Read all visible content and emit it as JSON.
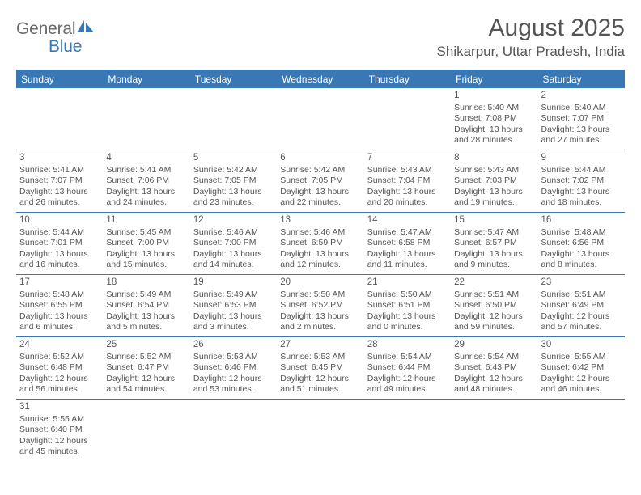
{
  "logo": {
    "general": "General",
    "blue": "Blue"
  },
  "title": "August 2025",
  "location": "Shikarpur, Uttar Pradesh, India",
  "colors": {
    "header_bg": "#3a78b5",
    "text": "#555555",
    "logo_gray": "#6a6a6a",
    "logo_blue": "#3a78b5"
  },
  "day_headers": [
    "Sunday",
    "Monday",
    "Tuesday",
    "Wednesday",
    "Thursday",
    "Friday",
    "Saturday"
  ],
  "weeks": [
    [
      null,
      null,
      null,
      null,
      null,
      {
        "n": "1",
        "sunrise": "Sunrise: 5:40 AM",
        "sunset": "Sunset: 7:08 PM",
        "daylight": "Daylight: 13 hours and 28 minutes."
      },
      {
        "n": "2",
        "sunrise": "Sunrise: 5:40 AM",
        "sunset": "Sunset: 7:07 PM",
        "daylight": "Daylight: 13 hours and 27 minutes."
      }
    ],
    [
      {
        "n": "3",
        "sunrise": "Sunrise: 5:41 AM",
        "sunset": "Sunset: 7:07 PM",
        "daylight": "Daylight: 13 hours and 26 minutes."
      },
      {
        "n": "4",
        "sunrise": "Sunrise: 5:41 AM",
        "sunset": "Sunset: 7:06 PM",
        "daylight": "Daylight: 13 hours and 24 minutes."
      },
      {
        "n": "5",
        "sunrise": "Sunrise: 5:42 AM",
        "sunset": "Sunset: 7:05 PM",
        "daylight": "Daylight: 13 hours and 23 minutes."
      },
      {
        "n": "6",
        "sunrise": "Sunrise: 5:42 AM",
        "sunset": "Sunset: 7:05 PM",
        "daylight": "Daylight: 13 hours and 22 minutes."
      },
      {
        "n": "7",
        "sunrise": "Sunrise: 5:43 AM",
        "sunset": "Sunset: 7:04 PM",
        "daylight": "Daylight: 13 hours and 20 minutes."
      },
      {
        "n": "8",
        "sunrise": "Sunrise: 5:43 AM",
        "sunset": "Sunset: 7:03 PM",
        "daylight": "Daylight: 13 hours and 19 minutes."
      },
      {
        "n": "9",
        "sunrise": "Sunrise: 5:44 AM",
        "sunset": "Sunset: 7:02 PM",
        "daylight": "Daylight: 13 hours and 18 minutes."
      }
    ],
    [
      {
        "n": "10",
        "sunrise": "Sunrise: 5:44 AM",
        "sunset": "Sunset: 7:01 PM",
        "daylight": "Daylight: 13 hours and 16 minutes."
      },
      {
        "n": "11",
        "sunrise": "Sunrise: 5:45 AM",
        "sunset": "Sunset: 7:00 PM",
        "daylight": "Daylight: 13 hours and 15 minutes."
      },
      {
        "n": "12",
        "sunrise": "Sunrise: 5:46 AM",
        "sunset": "Sunset: 7:00 PM",
        "daylight": "Daylight: 13 hours and 14 minutes."
      },
      {
        "n": "13",
        "sunrise": "Sunrise: 5:46 AM",
        "sunset": "Sunset: 6:59 PM",
        "daylight": "Daylight: 13 hours and 12 minutes."
      },
      {
        "n": "14",
        "sunrise": "Sunrise: 5:47 AM",
        "sunset": "Sunset: 6:58 PM",
        "daylight": "Daylight: 13 hours and 11 minutes."
      },
      {
        "n": "15",
        "sunrise": "Sunrise: 5:47 AM",
        "sunset": "Sunset: 6:57 PM",
        "daylight": "Daylight: 13 hours and 9 minutes."
      },
      {
        "n": "16",
        "sunrise": "Sunrise: 5:48 AM",
        "sunset": "Sunset: 6:56 PM",
        "daylight": "Daylight: 13 hours and 8 minutes."
      }
    ],
    [
      {
        "n": "17",
        "sunrise": "Sunrise: 5:48 AM",
        "sunset": "Sunset: 6:55 PM",
        "daylight": "Daylight: 13 hours and 6 minutes."
      },
      {
        "n": "18",
        "sunrise": "Sunrise: 5:49 AM",
        "sunset": "Sunset: 6:54 PM",
        "daylight": "Daylight: 13 hours and 5 minutes."
      },
      {
        "n": "19",
        "sunrise": "Sunrise: 5:49 AM",
        "sunset": "Sunset: 6:53 PM",
        "daylight": "Daylight: 13 hours and 3 minutes."
      },
      {
        "n": "20",
        "sunrise": "Sunrise: 5:50 AM",
        "sunset": "Sunset: 6:52 PM",
        "daylight": "Daylight: 13 hours and 2 minutes."
      },
      {
        "n": "21",
        "sunrise": "Sunrise: 5:50 AM",
        "sunset": "Sunset: 6:51 PM",
        "daylight": "Daylight: 13 hours and 0 minutes."
      },
      {
        "n": "22",
        "sunrise": "Sunrise: 5:51 AM",
        "sunset": "Sunset: 6:50 PM",
        "daylight": "Daylight: 12 hours and 59 minutes."
      },
      {
        "n": "23",
        "sunrise": "Sunrise: 5:51 AM",
        "sunset": "Sunset: 6:49 PM",
        "daylight": "Daylight: 12 hours and 57 minutes."
      }
    ],
    [
      {
        "n": "24",
        "sunrise": "Sunrise: 5:52 AM",
        "sunset": "Sunset: 6:48 PM",
        "daylight": "Daylight: 12 hours and 56 minutes."
      },
      {
        "n": "25",
        "sunrise": "Sunrise: 5:52 AM",
        "sunset": "Sunset: 6:47 PM",
        "daylight": "Daylight: 12 hours and 54 minutes."
      },
      {
        "n": "26",
        "sunrise": "Sunrise: 5:53 AM",
        "sunset": "Sunset: 6:46 PM",
        "daylight": "Daylight: 12 hours and 53 minutes."
      },
      {
        "n": "27",
        "sunrise": "Sunrise: 5:53 AM",
        "sunset": "Sunset: 6:45 PM",
        "daylight": "Daylight: 12 hours and 51 minutes."
      },
      {
        "n": "28",
        "sunrise": "Sunrise: 5:54 AM",
        "sunset": "Sunset: 6:44 PM",
        "daylight": "Daylight: 12 hours and 49 minutes."
      },
      {
        "n": "29",
        "sunrise": "Sunrise: 5:54 AM",
        "sunset": "Sunset: 6:43 PM",
        "daylight": "Daylight: 12 hours and 48 minutes."
      },
      {
        "n": "30",
        "sunrise": "Sunrise: 5:55 AM",
        "sunset": "Sunset: 6:42 PM",
        "daylight": "Daylight: 12 hours and 46 minutes."
      }
    ],
    [
      {
        "n": "31",
        "sunrise": "Sunrise: 5:55 AM",
        "sunset": "Sunset: 6:40 PM",
        "daylight": "Daylight: 12 hours and 45 minutes."
      },
      null,
      null,
      null,
      null,
      null,
      null
    ]
  ]
}
